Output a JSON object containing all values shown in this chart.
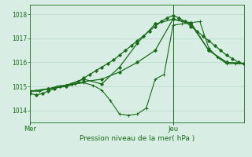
{
  "title": "",
  "xlabel": "Pression niveau de la mer( hPa )",
  "bg_color": "#d8ede4",
  "grid_color": "#b8d8c8",
  "line_color": "#1a6b1a",
  "ylim": [
    1013.5,
    1018.4
  ],
  "yticks": [
    1014,
    1015,
    1016,
    1017,
    1018
  ],
  "vline_x": 48,
  "figsize": [
    3.2,
    2.0
  ],
  "dpi": 100,
  "series": [
    {
      "x": [
        0,
        2,
        4,
        6,
        8,
        10,
        12,
        14,
        16,
        18,
        20,
        22,
        24,
        26,
        28,
        30,
        32,
        34,
        36,
        38,
        40,
        42,
        44,
        46,
        48,
        50,
        52,
        54,
        56,
        58,
        60,
        62,
        64,
        66,
        68,
        70,
        72
      ],
      "y": [
        1014.7,
        1014.65,
        1014.7,
        1014.8,
        1014.9,
        1015.0,
        1015.05,
        1015.1,
        1015.2,
        1015.35,
        1015.5,
        1015.65,
        1015.8,
        1015.95,
        1016.1,
        1016.3,
        1016.5,
        1016.7,
        1016.9,
        1017.1,
        1017.3,
        1017.5,
        1017.7,
        1017.85,
        1017.95,
        1017.85,
        1017.7,
        1017.5,
        1017.3,
        1017.1,
        1016.9,
        1016.7,
        1016.5,
        1016.3,
        1016.15,
        1016.0,
        1015.95
      ],
      "marker": "D",
      "markersize": 2,
      "linewidth": 0.9
    },
    {
      "x": [
        0,
        6,
        12,
        18,
        24,
        30,
        36,
        42,
        48,
        54,
        60,
        66,
        72
      ],
      "y": [
        1014.8,
        1014.9,
        1015.0,
        1015.2,
        1015.3,
        1015.6,
        1016.0,
        1016.5,
        1017.8,
        1017.6,
        1016.5,
        1016.0,
        1015.95
      ],
      "marker": "D",
      "markersize": 2,
      "linewidth": 0.9
    },
    {
      "x": [
        0,
        3,
        6,
        9,
        12,
        15,
        18,
        21,
        24,
        27,
        30,
        33,
        36,
        39,
        42,
        45,
        48,
        51,
        54,
        57,
        60,
        63,
        66,
        69,
        72
      ],
      "y": [
        1014.8,
        1014.8,
        1014.9,
        1015.0,
        1015.05,
        1015.1,
        1015.15,
        1015.05,
        1014.85,
        1014.4,
        1013.85,
        1013.8,
        1013.85,
        1014.1,
        1015.3,
        1015.5,
        1017.55,
        1017.6,
        1017.65,
        1017.7,
        1016.6,
        1016.2,
        1015.95,
        1015.95,
        1015.95
      ],
      "marker": "+",
      "markersize": 3,
      "linewidth": 0.8
    },
    {
      "x": [
        0,
        6,
        12,
        18,
        24,
        30,
        36,
        42,
        48,
        54,
        60,
        66,
        72
      ],
      "y": [
        1014.8,
        1014.9,
        1015.05,
        1015.3,
        1015.1,
        1015.8,
        1016.8,
        1017.6,
        1017.8,
        1017.65,
        1016.5,
        1016.0,
        1015.95
      ],
      "marker": "D",
      "markersize": 2,
      "linewidth": 0.9
    }
  ]
}
